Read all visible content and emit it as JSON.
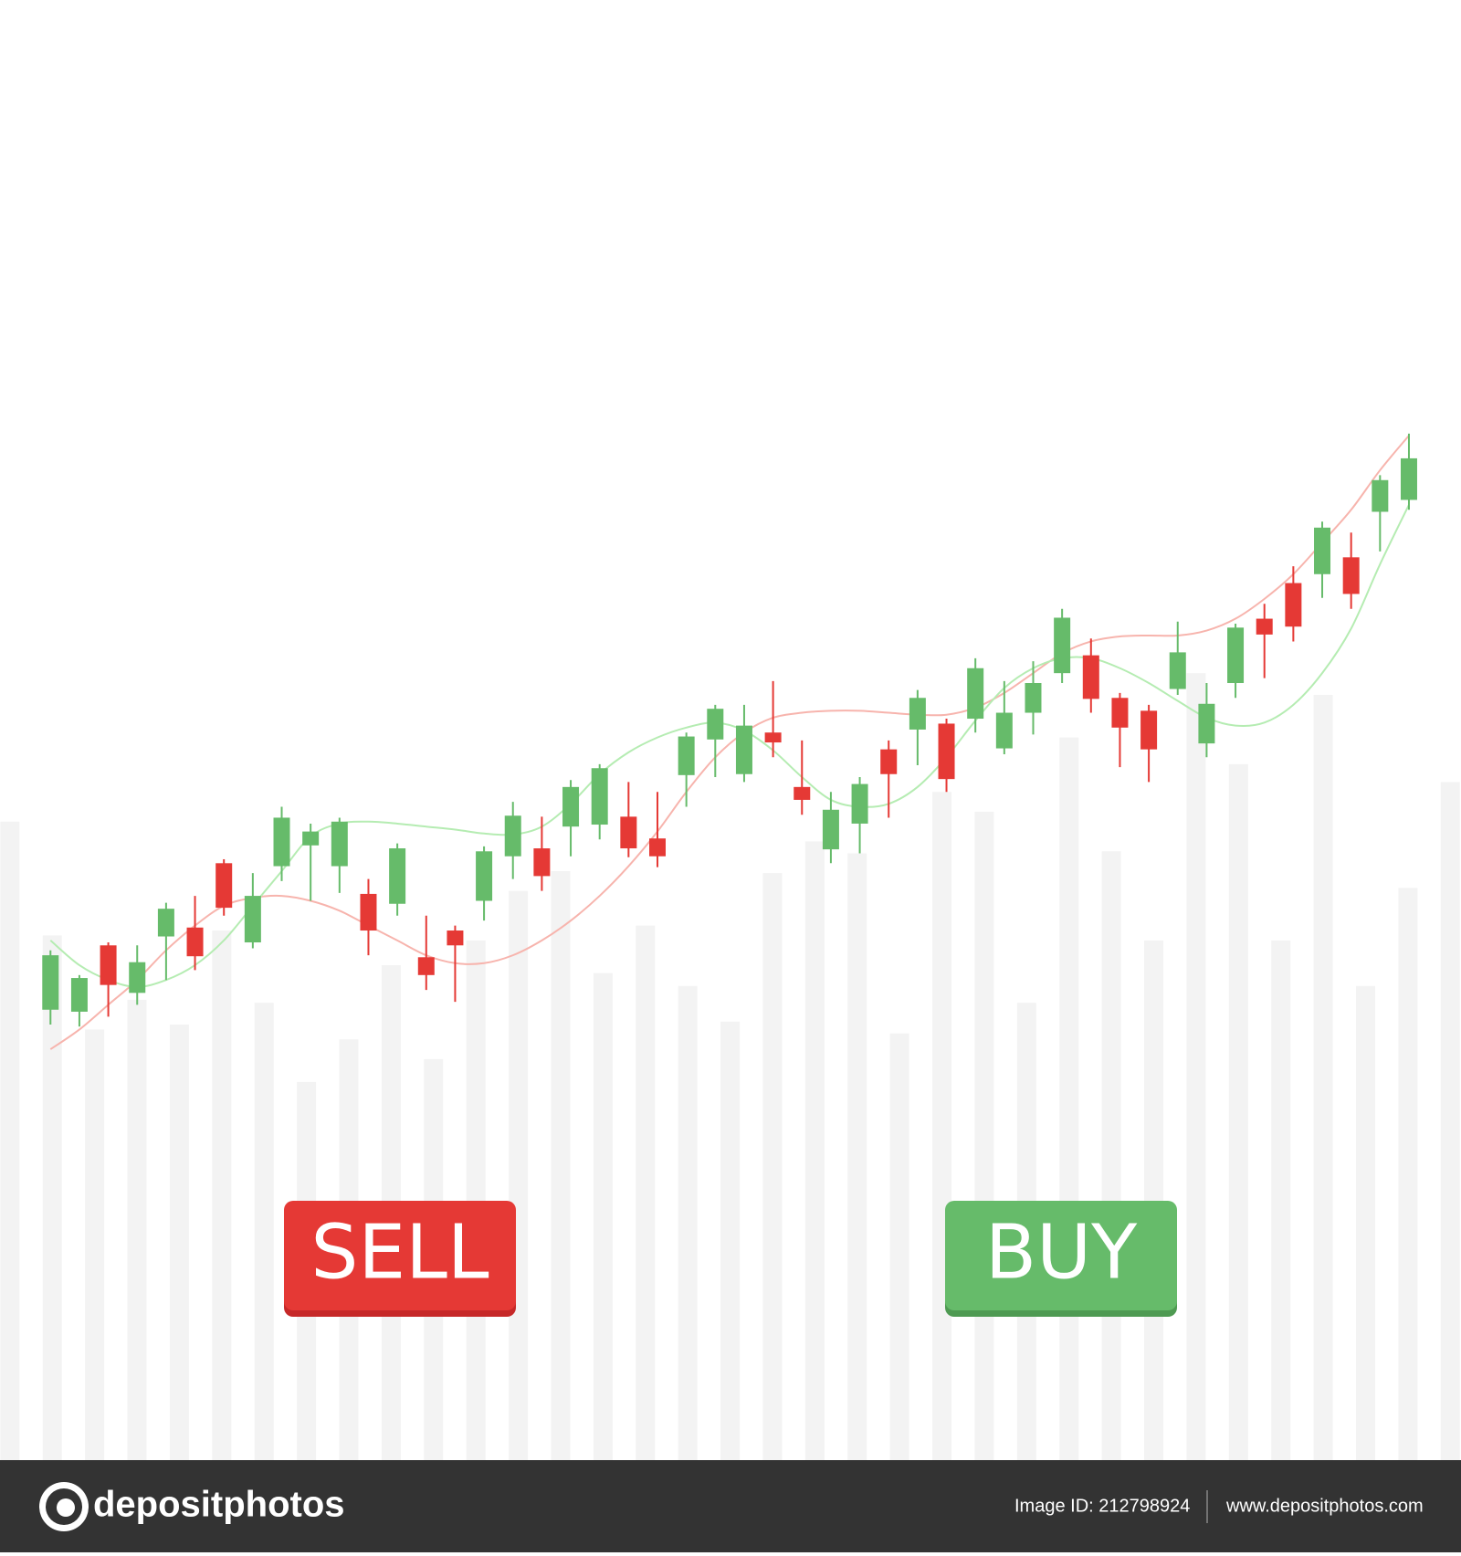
{
  "chart_data": {
    "type": "candlestick",
    "ylim": [
      0,
      1475
    ],
    "up_color": "#66bb6a",
    "down_color": "#e53935",
    "open": [
      455,
      453,
      520,
      472,
      529,
      538,
      603,
      523,
      600,
      621,
      600,
      572,
      562,
      508,
      535,
      565,
      610,
      618,
      640,
      642,
      650,
      628,
      692,
      728,
      693,
      735,
      680,
      617,
      643,
      718,
      738,
      744,
      749,
      719,
      755,
      795,
      813,
      770,
      757,
      779,
      724,
      785,
      850,
      886,
      895,
      912,
      958,
      970
    ],
    "high": [
      515,
      490,
      523,
      520,
      563,
      570,
      607,
      593,
      660,
      643,
      649,
      587,
      623,
      550,
      540,
      620,
      665,
      650,
      687,
      703,
      685,
      675,
      735,
      763,
      763,
      787,
      727,
      675,
      690,
      727,
      778,
      749,
      810,
      787,
      807,
      860,
      830,
      775,
      763,
      847,
      785,
      845,
      865,
      903,
      948,
      937,
      995,
      1037
    ],
    "low": [
      440,
      438,
      448,
      460,
      485,
      495,
      550,
      517,
      585,
      565,
      573,
      510,
      550,
      475,
      463,
      545,
      587,
      575,
      610,
      627,
      609,
      599,
      660,
      690,
      685,
      710,
      652,
      603,
      613,
      649,
      702,
      675,
      735,
      713,
      733,
      785,
      755,
      700,
      685,
      773,
      710,
      770,
      790,
      827,
      871,
      860,
      918,
      960
    ],
    "close": [
      510,
      487,
      480,
      503,
      557,
      509,
      558,
      570,
      649,
      635,
      645,
      535,
      618,
      490,
      520,
      615,
      651,
      590,
      680,
      699,
      618,
      610,
      731,
      759,
      742,
      725,
      667,
      657,
      683,
      693,
      770,
      688,
      800,
      755,
      785,
      851,
      769,
      740,
      718,
      816,
      764,
      841,
      834,
      842,
      942,
      875,
      990,
      1012
    ],
    "moving_averages": [
      {
        "color": "#f7b4ad",
        "values": [
          415,
          435,
          460,
          485,
          515,
          540,
          560,
          568,
          570,
          565,
          555,
          540,
          525,
          510,
          502,
          502,
          510,
          525,
          545,
          570,
          600,
          635,
          675,
          710,
          735,
          750,
          755,
          757,
          757,
          755,
          753,
          753,
          760,
          775,
          795,
          815,
          827,
          832,
          833,
          833,
          838,
          850,
          870,
          895,
          927,
          960,
          1000,
          1035
        ]
      },
      {
        "color": "#b5ecb2",
        "values": [
          525,
          500,
          485,
          478,
          485,
          500,
          525,
          560,
          595,
          630,
          643,
          645,
          643,
          640,
          637,
          633,
          632,
          640,
          663,
          693,
          715,
          730,
          740,
          745,
          737,
          717,
          690,
          667,
          660,
          663,
          680,
          710,
          747,
          780,
          800,
          810,
          810,
          800,
          785,
          767,
          750,
          742,
          745,
          763,
          795,
          840,
          905,
          965
        ]
      }
    ],
    "volume": {
      "color": "#f3f3f3",
      "values": [
        645,
        530,
        435,
        465,
        440,
        535,
        462,
        382,
        425,
        500,
        405,
        525,
        575,
        595,
        492,
        540,
        479,
        443,
        593,
        625,
        613,
        431,
        675,
        655,
        462,
        730,
        615,
        525,
        795,
        703,
        525,
        773,
        479,
        578,
        685
      ]
    }
  },
  "buttons": [
    {
      "label": "SELL",
      "color": "#e53935",
      "shade": "#c62828"
    },
    {
      "label": "BUY",
      "color": "#66bb6a",
      "shade": "#4e9a52"
    }
  ],
  "footer": {
    "brand": "depositphotos",
    "image_id": "Image ID: 212798924",
    "site": "www.depositphotos.com"
  }
}
